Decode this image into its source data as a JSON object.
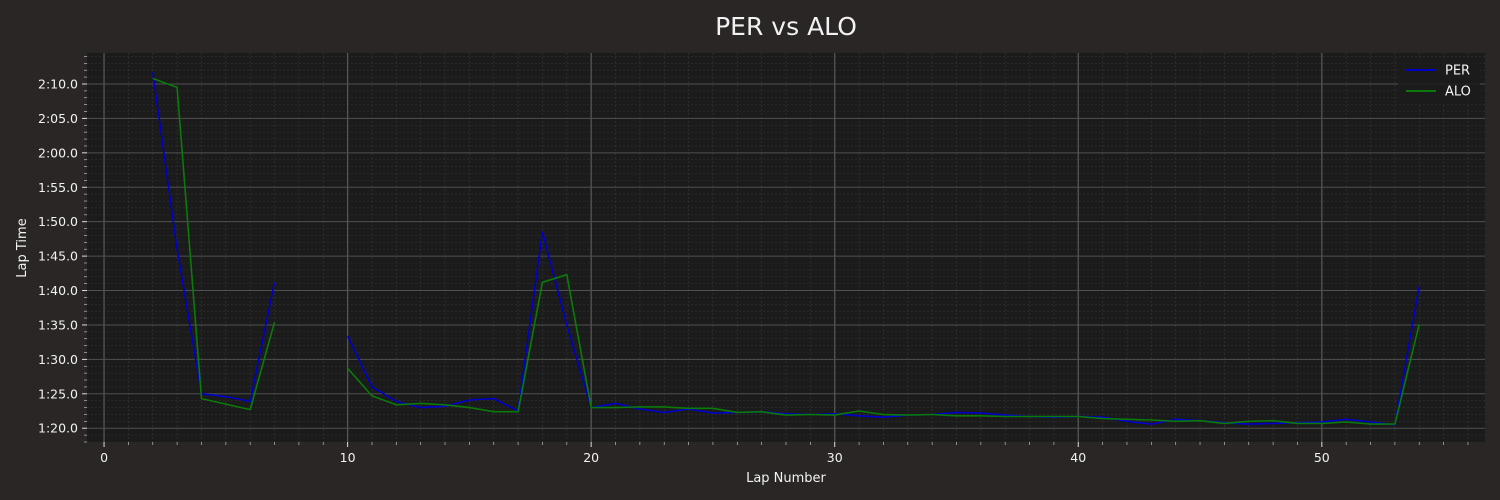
{
  "chart_data": {
    "type": "line",
    "title": "PER vs ALO",
    "xlabel": "Lap Number",
    "ylabel": "Lap Time",
    "xlim": [
      -0.7,
      56.7
    ],
    "ylim": [
      78.0,
      134.5
    ],
    "x_ticks": [
      0,
      10,
      20,
      30,
      40,
      50
    ],
    "y_ticks": [
      80,
      85,
      90,
      95,
      100,
      105,
      110,
      115,
      120,
      125,
      130
    ],
    "y_tick_labels": [
      "1:20.0",
      "1:25.0",
      "1:30.0",
      "1:35.0",
      "1:40.0",
      "1:45.0",
      "1:50.0",
      "1:55.0",
      "2:00.0",
      "2:05.0",
      "2:10.0"
    ],
    "grid": true,
    "legend_position": "top-right",
    "background": "#1b1b1b",
    "series": [
      {
        "name": "PER",
        "color": "#0000cc",
        "x": [
          2,
          3,
          4,
          5,
          6,
          7,
          10,
          11,
          12,
          13,
          14,
          15,
          16,
          17,
          18,
          19,
          20,
          21,
          22,
          23,
          24,
          25,
          26,
          27,
          28,
          29,
          30,
          31,
          32,
          33,
          34,
          35,
          36,
          37,
          38,
          39,
          40,
          41,
          42,
          43,
          44,
          45,
          46,
          47,
          48,
          49,
          50,
          51,
          52,
          53,
          54
        ],
        "y": [
          131.7,
          106.0,
          85.0,
          84.6,
          83.9,
          101.2,
          93.4,
          86.0,
          83.9,
          83.0,
          83.2,
          84.1,
          84.3,
          82.5,
          108.5,
          95.0,
          83.0,
          83.6,
          82.8,
          82.3,
          82.8,
          82.2,
          82.3,
          82.4,
          82.1,
          82.0,
          82.1,
          81.8,
          81.6,
          81.9,
          82.0,
          82.3,
          82.2,
          81.9,
          81.7,
          81.6,
          81.7,
          81.6,
          81.0,
          80.6,
          81.3,
          81.1,
          80.8,
          80.6,
          80.7,
          80.8,
          80.9,
          81.3,
          80.9,
          80.5,
          100.6
        ]
      },
      {
        "name": "ALO",
        "color": "#0a7a0a",
        "x": [
          2,
          3,
          4,
          5,
          6,
          7,
          10,
          11,
          12,
          13,
          14,
          15,
          16,
          17,
          18,
          19,
          20,
          21,
          22,
          23,
          24,
          25,
          26,
          27,
          28,
          29,
          30,
          31,
          32,
          33,
          34,
          35,
          36,
          37,
          38,
          39,
          40,
          41,
          42,
          43,
          44,
          45,
          46,
          47,
          48,
          49,
          50,
          51,
          52,
          53,
          54
        ],
        "y": [
          130.8,
          129.5,
          84.3,
          83.5,
          82.7,
          95.4,
          88.7,
          84.7,
          83.4,
          83.6,
          83.4,
          83.0,
          82.4,
          82.4,
          101.2,
          102.3,
          83.0,
          83.0,
          83.1,
          83.1,
          82.9,
          82.9,
          82.3,
          82.4,
          81.9,
          82.0,
          81.9,
          82.5,
          82.0,
          81.9,
          82.0,
          81.8,
          81.8,
          81.7,
          81.7,
          81.7,
          81.7,
          81.4,
          81.3,
          81.2,
          81.0,
          81.1,
          80.7,
          81.0,
          81.1,
          80.7,
          80.7,
          80.9,
          80.6,
          80.6,
          95.1
        ]
      }
    ]
  }
}
